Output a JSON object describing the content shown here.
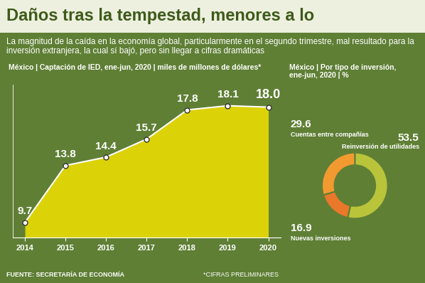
{
  "title": "Daños tras la tempestad, menores a lo",
  "subtitle": "La magnitud de la caída en la economía global, particularmente en el segundo trimestre, mal resultado para la inversión extranjera, la cual sí bajó, pero sin llegar a cifras dramáticas",
  "source": "FUENTE: SECRETARÍA DE ECONOMÍA",
  "note": "*CIFRAS PRELIMINARES",
  "chart_data": [
    {
      "type": "area",
      "title": "México | Captación de IED, ene-jun, 2020 | miles de millones de dólares*",
      "x": [
        2014,
        2015,
        2016,
        2017,
        2018,
        2019,
        2020
      ],
      "values": [
        9.7,
        13.8,
        14.4,
        15.7,
        17.8,
        18.1,
        18.0
      ],
      "color": "#f3e100",
      "xlim": [
        2013.7,
        2020.3
      ],
      "xticks": [
        2014,
        2015,
        2016,
        2017,
        2018,
        2019,
        2020
      ],
      "ylim": [
        8.6,
        19.6
      ],
      "yticks": [],
      "tick_labels": "x",
      "data_labels": true,
      "grid": false
    },
    {
      "type": "donut",
      "title": "México | Por tipo de inversión, ene-jun, 2020 | %",
      "categories": [
        "Reinversión de utilidades",
        "Nuevas inversiones",
        "Cuentas entre compañías"
      ],
      "values": [
        53.5,
        16.9,
        29.6
      ],
      "colors": [
        "#b9c43a",
        "#e9782a",
        "#f29a30"
      ],
      "data_labels": true
    }
  ]
}
